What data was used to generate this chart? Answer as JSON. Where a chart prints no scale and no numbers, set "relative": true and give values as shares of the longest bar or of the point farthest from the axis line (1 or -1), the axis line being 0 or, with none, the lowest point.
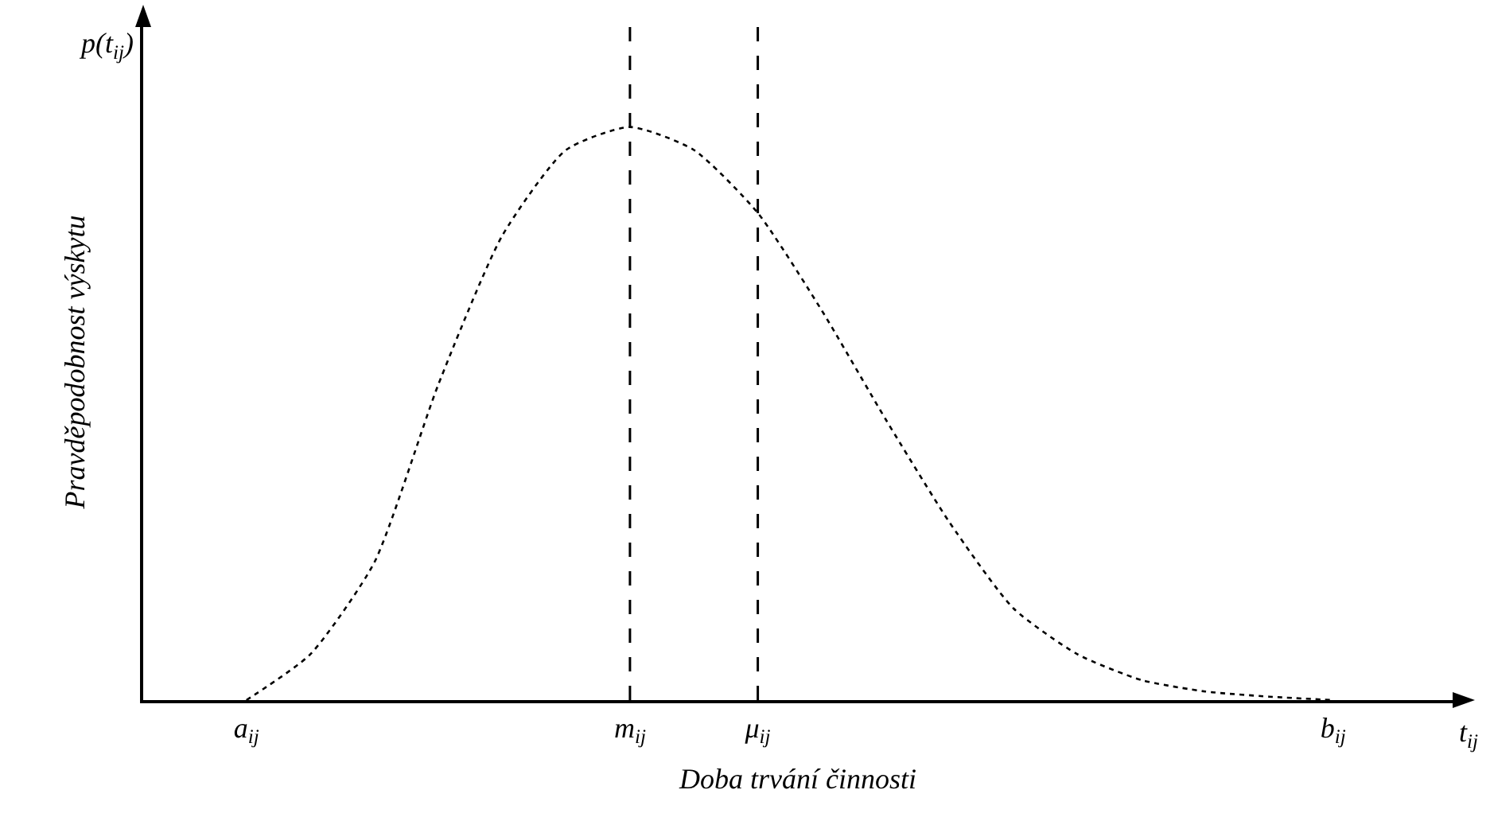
{
  "chart_data": {
    "type": "line",
    "relative": true,
    "xlabel": "Doba trvání činnosti",
    "ylabel": "Pravděpodobnost výskytu",
    "annotations": [
      "p(t$_{ij}$)",
      "t$_{ij}$"
    ],
    "categories": [
      "a$_{ij}$",
      null,
      null,
      null,
      null,
      null,
      "m$_{ij}$",
      null,
      "μ$_{ij}$",
      null,
      null,
      null,
      null,
      null,
      null,
      null,
      null,
      "b$_{ij}$"
    ],
    "series": [
      {
        "color": "#000000",
        "values": [
          0,
          0.08,
          0.24,
          0.55,
          0.81,
          0.96,
          1,
          0.96,
          0.85,
          0.68,
          0.49,
          0.31,
          0.16,
          0.08,
          0.035,
          0.015,
          0.006,
          0
        ]
      }
    ],
    "ref_lines": [
      {
        "axis": "x",
        "value": "m$_{ij}$",
        "color": "#000000",
        "line_style": "dashed"
      },
      {
        "axis": "x",
        "value": "μ$_{ij}$",
        "color": "#000000",
        "line_style": "dashed"
      }
    ],
    "line_style": "dotted",
    "marker": "none",
    "grid": false,
    "legend": false
  }
}
